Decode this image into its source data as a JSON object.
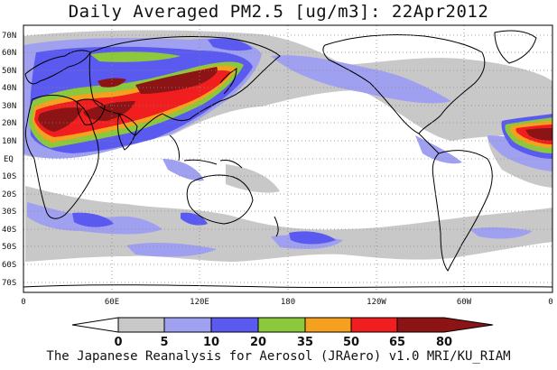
{
  "title": "Daily Averaged PM2.5 [ug/m3]: 22Apr2012",
  "footer": "The Japanese Reanalysis for Aerosol (JRAero) v1.0 MRI/KU_RIAM",
  "map": {
    "projection": "cylindrical equidistant, 0–360°E",
    "lat_ticks": [
      "70N",
      "60N",
      "50N",
      "40N",
      "30N",
      "20N",
      "10N",
      "EQ",
      "10S",
      "20S",
      "30S",
      "40S",
      "50S",
      "60S",
      "70S"
    ],
    "lon_ticks": [
      "0",
      "60E",
      "120E",
      "180",
      "120W",
      "60W",
      "0"
    ],
    "gridlines": "dotted"
  },
  "colorbar": {
    "ticks": [
      "0",
      "5",
      "10",
      "20",
      "35",
      "50",
      "65",
      "80"
    ],
    "colors": [
      "#ffffff",
      "#c8c8c8",
      "#a0a0f0",
      "#5a5af0",
      "#8cc83c",
      "#f5a01e",
      "#f01e1e",
      "#8c1414"
    ],
    "extends": "both"
  },
  "colors": {
    "ocean_bg": "#ffffff",
    "coast": "#000000"
  }
}
